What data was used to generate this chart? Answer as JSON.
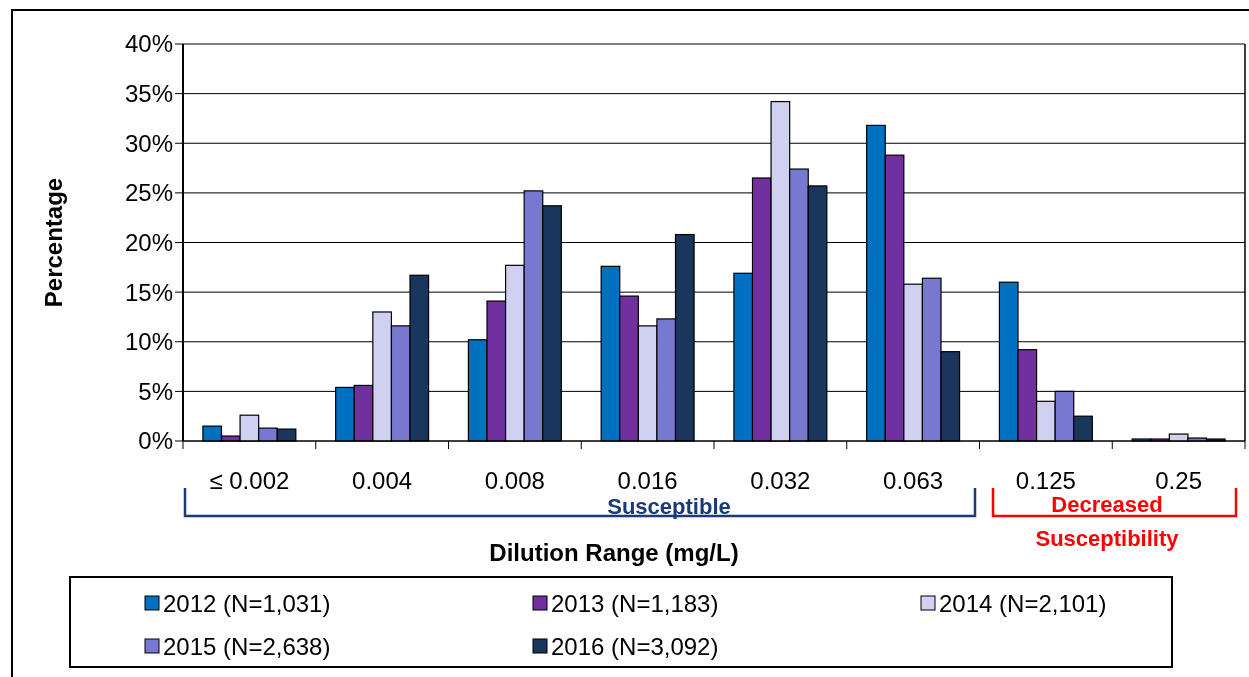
{
  "chart_data": {
    "type": "bar",
    "xlabel": "Dilution Range (mg/L)",
    "ylabel": "Percentage",
    "categories": [
      "≤ 0.002",
      "0.004",
      "0.008",
      "0.016",
      "0.032",
      "0.063",
      "0.125",
      "0.25"
    ],
    "series": [
      {
        "name": "2012 (N=1,031)",
        "color": "#0070c0",
        "values": [
          1.5,
          5.4,
          10.2,
          17.6,
          16.9,
          31.8,
          16.0,
          0.2
        ]
      },
      {
        "name": "2013 (N=1,183)",
        "color": "#7030a0",
        "values": [
          0.5,
          5.6,
          14.1,
          14.6,
          26.5,
          28.8,
          9.2,
          0.2
        ]
      },
      {
        "name": "2014 (N=2,101)",
        "color": "#d0d0f0",
        "values": [
          2.6,
          13.0,
          17.7,
          11.6,
          34.2,
          15.8,
          4.0,
          0.7
        ]
      },
      {
        "name": "2015 (N=2,638)",
        "color": "#7878d0",
        "values": [
          1.3,
          11.6,
          25.2,
          12.3,
          27.4,
          16.4,
          5.0,
          0.3
        ]
      },
      {
        "name": "2016 (N=3,092)",
        "color": "#1a365d",
        "values": [
          1.2,
          16.7,
          23.7,
          20.8,
          25.7,
          9.0,
          2.5,
          0.2
        ]
      }
    ],
    "ylim": [
      0,
      40
    ],
    "yticks": [
      {
        "value": 0,
        "label": "0%"
      },
      {
        "value": 5,
        "label": "5%"
      },
      {
        "value": 10,
        "label": "10%"
      },
      {
        "value": 15,
        "label": "15%"
      },
      {
        "value": 20,
        "label": "20%"
      },
      {
        "value": 25,
        "label": "25%"
      },
      {
        "value": 30,
        "label": "30%"
      },
      {
        "value": 35,
        "label": "35%"
      },
      {
        "value": 40,
        "label": "40%"
      }
    ],
    "grid": "y",
    "legend": "bottom",
    "annotations": [
      "Susceptible",
      "Decreased Susceptibility"
    ]
  }
}
